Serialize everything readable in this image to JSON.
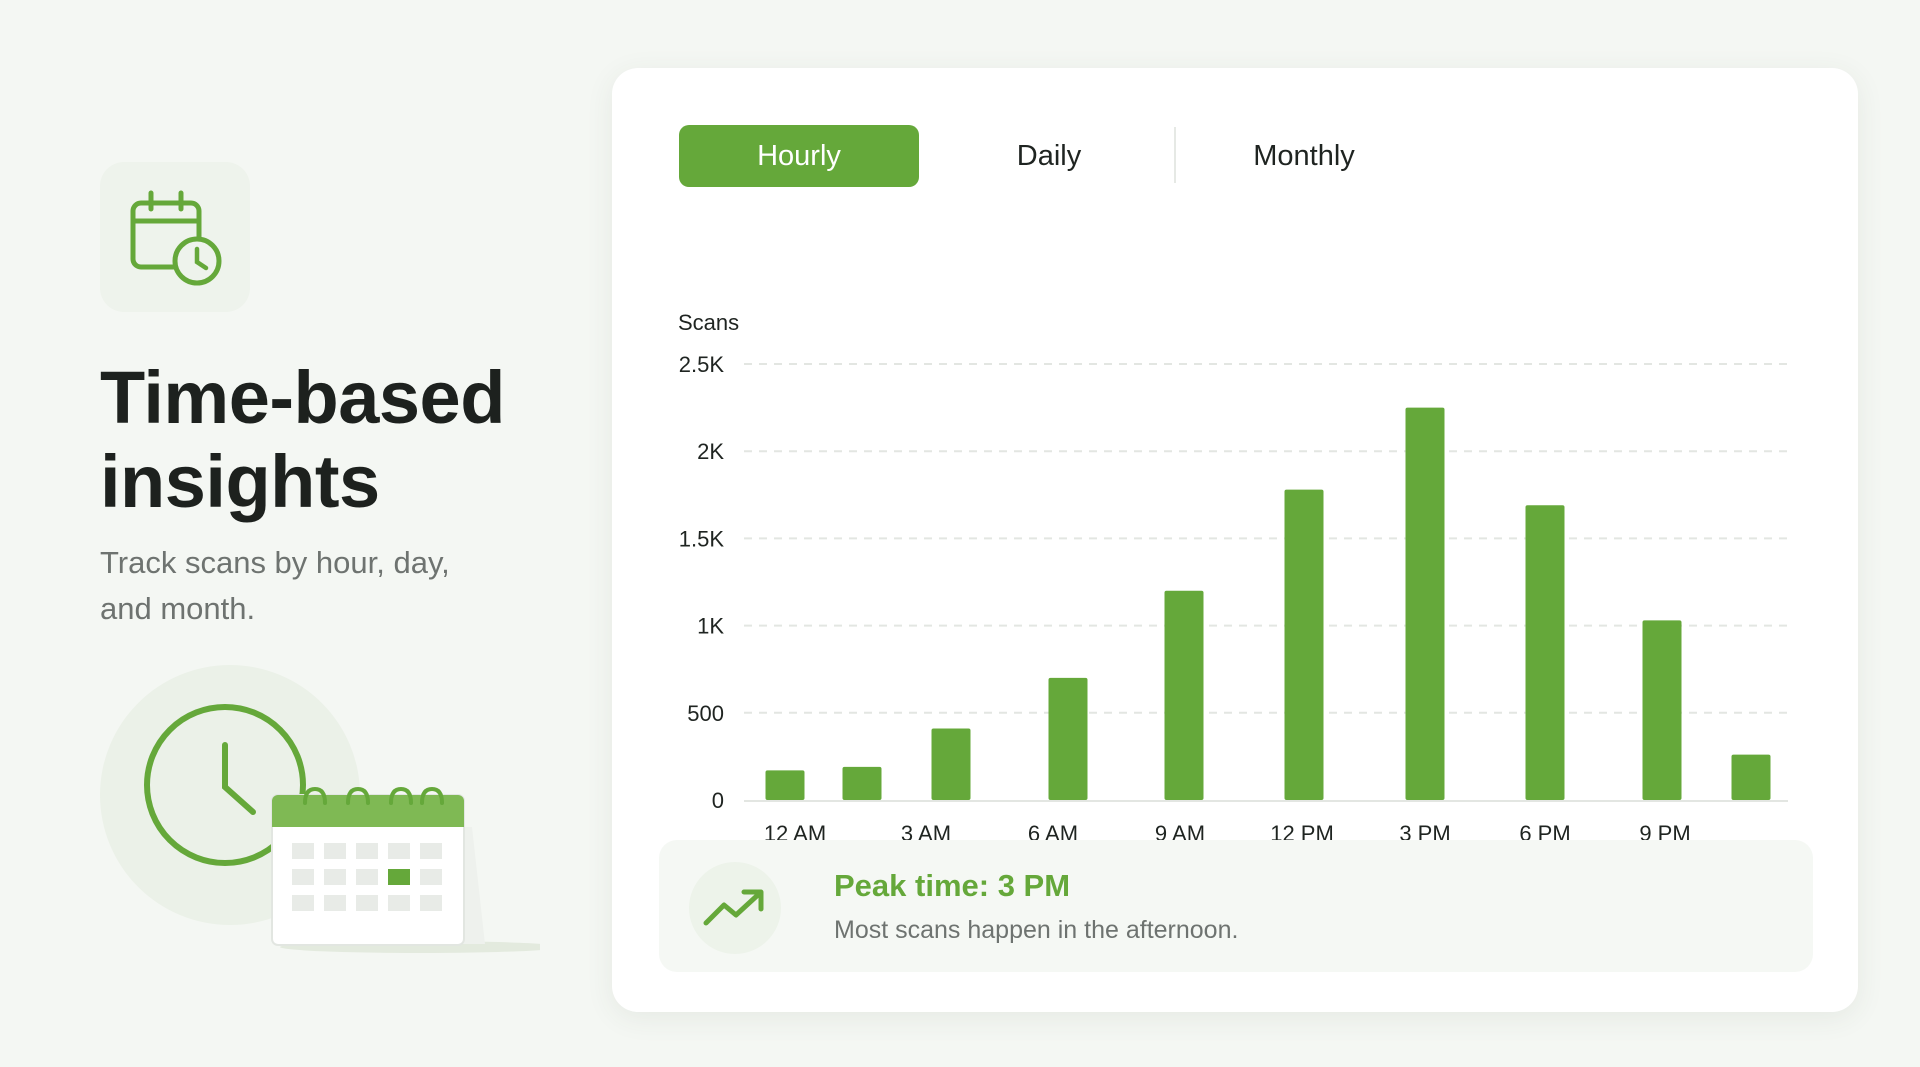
{
  "hero": {
    "title_line1": "Time-based",
    "title_line2": "insights",
    "subtitle": "Track scans by hour, day, and month.",
    "icon": "calendar-clock-icon"
  },
  "tabs": [
    {
      "label": "Hourly",
      "active": true
    },
    {
      "label": "Daily",
      "active": false
    },
    {
      "label": "Monthly",
      "active": false
    }
  ],
  "chart_data": {
    "type": "bar",
    "ylabel": "Scans",
    "ylim": [
      0,
      2500
    ],
    "yticks": [
      {
        "value": 0,
        "label": "0"
      },
      {
        "value": 500,
        "label": "500"
      },
      {
        "value": 1000,
        "label": "1K"
      },
      {
        "value": 1500,
        "label": "1.5K"
      },
      {
        "value": 2000,
        "label": "2K"
      },
      {
        "value": 2500,
        "label": "2.5K"
      }
    ],
    "grid": true,
    "categories": [
      "12 AM",
      "",
      "3 AM",
      "6 AM",
      "9 AM",
      "12 PM",
      "3 PM",
      "6 PM",
      "9 PM",
      ""
    ],
    "values": [
      170,
      190,
      410,
      700,
      1200,
      1780,
      2250,
      1690,
      1030,
      260
    ],
    "color": "#65a83a"
  },
  "peak": {
    "title": "Peak time: 3 PM",
    "text": "Most scans happen in the afternoon.",
    "icon": "trending-up-icon"
  },
  "colors": {
    "accent": "#65a83a",
    "background": "#f4f7f3",
    "card": "#ffffff"
  }
}
